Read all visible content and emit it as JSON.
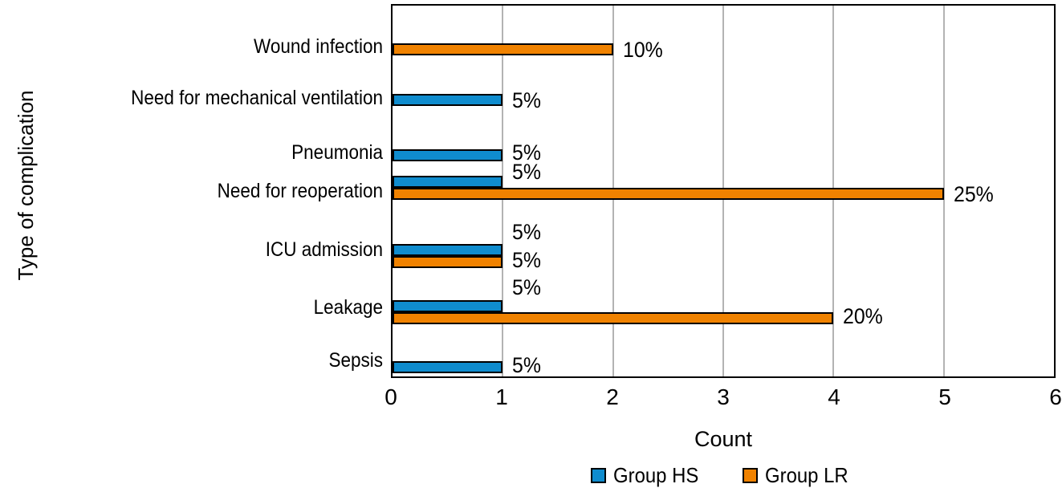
{
  "figure": {
    "y_axis_title": "Type of complication",
    "x_axis_title": "Count"
  },
  "colors": {
    "group_hs": "#0F8CCE",
    "group_lr": "#F08200",
    "grid": "#B3B3B3",
    "frame": "#000000"
  },
  "legend": {
    "items": [
      {
        "label": "Group HS",
        "color_key": "group_hs"
      },
      {
        "label": "Group LR",
        "color_key": "group_lr"
      }
    ]
  },
  "chart_data": {
    "type": "bar",
    "orientation": "horizontal",
    "title": "",
    "xlabel": "Count",
    "ylabel": "Type of complication",
    "xlim": [
      0,
      6
    ],
    "x_ticks": [
      "0",
      "1",
      "2",
      "3",
      "4",
      "5",
      "6"
    ],
    "grid": "vertical-gridlines",
    "legend_position": "bottom",
    "categories": [
      "Wound infection",
      "Need for mechanical ventilation",
      "Pneumonia",
      "Need for reoperation",
      "ICU admission",
      "Leakage",
      "Sepsis"
    ],
    "series": [
      {
        "name": "Group HS",
        "color": "#0F8CCE",
        "values": [
          null,
          1,
          1,
          1,
          1,
          1,
          1
        ],
        "labels": [
          "",
          "5%",
          "5%",
          "5%",
          "5%",
          "5%",
          "5%"
        ]
      },
      {
        "name": "Group LR",
        "color": "#F08200",
        "values": [
          2,
          null,
          null,
          5,
          1,
          4,
          null
        ],
        "labels": [
          "10%",
          "",
          "",
          "25%",
          "5%",
          "20%",
          ""
        ]
      }
    ]
  }
}
